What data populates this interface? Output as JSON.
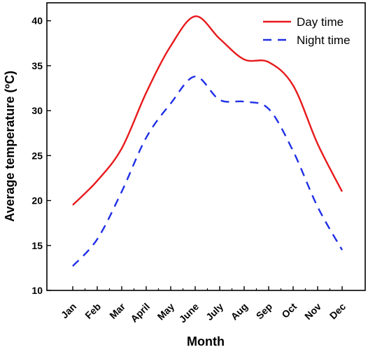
{
  "chart_data": {
    "type": "line",
    "xlabel": "Month",
    "ylabel": "Average temperature (ºC)",
    "categories": [
      "Jan",
      "Feb",
      "Mar",
      "April",
      "May",
      "June",
      "July",
      "Aug",
      "Sep",
      "Oct",
      "Nov",
      "Dec"
    ],
    "ylim": [
      10,
      42
    ],
    "yticks": [
      10,
      15,
      20,
      25,
      30,
      35,
      40
    ],
    "legend_position": "top-right",
    "grid": false,
    "series": [
      {
        "name": "Day time",
        "color": "#e8191c",
        "style": "solid",
        "values": [
          19.5,
          22.2,
          25.8,
          32.0,
          37.2,
          40.5,
          38.0,
          35.7,
          35.4,
          32.8,
          26.3,
          21.0
        ]
      },
      {
        "name": "Night time",
        "color": "#1f2fe6",
        "style": "dashed",
        "values": [
          12.7,
          15.7,
          21.0,
          27.0,
          30.8,
          33.8,
          31.2,
          31.0,
          30.2,
          25.5,
          19.3,
          14.5
        ]
      }
    ]
  }
}
